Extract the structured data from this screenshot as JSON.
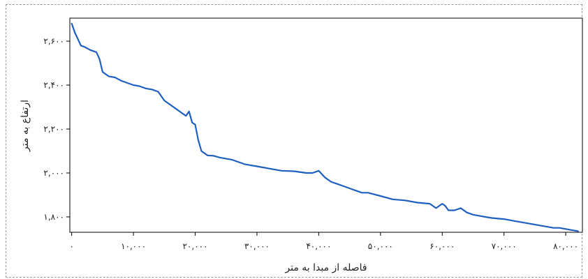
{
  "chart_data": {
    "type": "line",
    "xlabel": "فاصله از مبدا به متر",
    "ylabel": "ارتفاع به متر",
    "x_ticks": [
      0,
      10000,
      20000,
      30000,
      40000,
      50000,
      60000,
      70000,
      80000
    ],
    "x_tick_labels": [
      "۰",
      "۱۰,۰۰۰",
      "۲۰,۰۰۰",
      "۳۰,۰۰۰",
      "۴۰,۰۰۰",
      "۵۰,۰۰۰",
      "۶۰,۰۰۰",
      "۷۰,۰۰۰",
      "۸۰,۰۰۰"
    ],
    "y_ticks": [
      1800,
      2000,
      2200,
      2400,
      2600
    ],
    "y_tick_labels": [
      "۱,۸۰۰",
      "۲,۰۰۰",
      "۲,۲۰۰",
      "۲,۴۰۰",
      "۲,۶۰۰"
    ],
    "xlim": [
      -300,
      82700
    ],
    "ylim": [
      1730,
      2705
    ],
    "grid": false,
    "series": [
      {
        "color": "#1f5fc0",
        "x": [
          0,
          500,
          1000,
          1500,
          2000,
          3000,
          4000,
          4500,
          5000,
          5500,
          6000,
          7000,
          8000,
          9000,
          10000,
          11000,
          12000,
          13000,
          14000,
          15000,
          16000,
          17000,
          18000,
          18500,
          19000,
          19500,
          20000,
          20500,
          21000,
          22000,
          23000,
          24000,
          26000,
          28000,
          30000,
          32000,
          34000,
          36000,
          38000,
          39000,
          40000,
          41000,
          42000,
          43000,
          44000,
          45000,
          46000,
          47000,
          48000,
          50000,
          52000,
          54000,
          56000,
          58000,
          59000,
          60000,
          60500,
          61000,
          62000,
          63000,
          64000,
          65000,
          66000,
          67000,
          68000,
          70000,
          72000,
          74000,
          76000,
          77000,
          78000,
          79000,
          80000,
          81000,
          82000
        ],
        "y": [
          2680,
          2640,
          2610,
          2580,
          2575,
          2560,
          2550,
          2520,
          2460,
          2450,
          2440,
          2435,
          2420,
          2410,
          2400,
          2395,
          2385,
          2380,
          2370,
          2330,
          2310,
          2290,
          2270,
          2260,
          2280,
          2230,
          2220,
          2150,
          2100,
          2080,
          2078,
          2070,
          2060,
          2040,
          2030,
          2020,
          2010,
          2008,
          2000,
          2000,
          2010,
          1980,
          1960,
          1950,
          1940,
          1930,
          1920,
          1910,
          1910,
          1895,
          1880,
          1875,
          1865,
          1860,
          1840,
          1860,
          1850,
          1830,
          1830,
          1840,
          1820,
          1810,
          1805,
          1800,
          1795,
          1790,
          1780,
          1770,
          1760,
          1755,
          1750,
          1750,
          1745,
          1740,
          1735
        ]
      }
    ]
  }
}
